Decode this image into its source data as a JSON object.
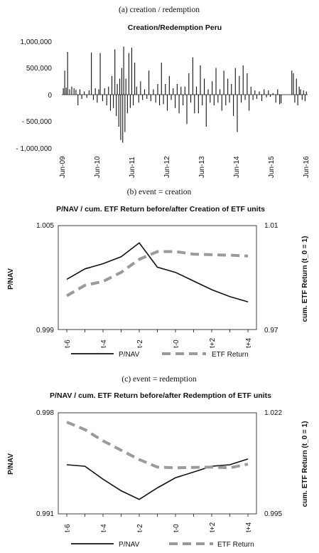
{
  "panels": {
    "a": {
      "caption": "(a) creation / redemption",
      "title": "Creation/Redemption Peru",
      "y_ticks": [
        "1,000,000",
        "500,000",
        "0",
        "- 500,000",
        "- 1,000,000"
      ],
      "x_ticks": [
        "Jun-09",
        "Jun-10",
        "Jun-11",
        "Jun-12",
        "Jun-13",
        "Jun-14",
        "Jun-15",
        "Jun-16"
      ]
    },
    "b": {
      "caption": "(b) event = creation",
      "title": "P/NAV / cum. ETF Return before/after Creation of ETF units",
      "left_axis_label": "P/NAV",
      "right_axis_label": "cum. ETF Return (t_0 = 1)",
      "left_ticks": [
        "1.005",
        "0.999"
      ],
      "right_ticks": [
        "1.01",
        "0.97"
      ],
      "x_ticks": [
        "t-6",
        "t-4",
        "t-2",
        "t-0",
        "t+2",
        "t+4"
      ],
      "legend": [
        "P/NAV",
        "ETF Return"
      ]
    },
    "c": {
      "caption": "(c) event = redemption",
      "title": "P/NAV / cum. ETF Return before/after Redemption of ETF units",
      "left_axis_label": "P/NAV",
      "right_axis_label": "cum. ETF Return (t_0 = 1)",
      "left_ticks": [
        "0.998",
        "0.991"
      ],
      "right_ticks": [
        "1.022",
        "0.995"
      ],
      "x_ticks": [
        "t-6",
        "t-4",
        "t-2",
        "t-0",
        "t+2",
        "t+4"
      ],
      "legend": [
        "P/NAV",
        "ETF Return"
      ]
    }
  },
  "chart_data": [
    {
      "type": "bar",
      "title": "Creation/Redemption Peru",
      "ylim": [
        -1000000,
        1000000
      ],
      "x_range": [
        "Jun-09",
        "Jun-16"
      ],
      "bars": [
        [
          "2009-06-05",
          120000
        ],
        [
          "2009-06-20",
          450000
        ],
        [
          "2009-07-05",
          130000
        ],
        [
          "2009-07-20",
          800000
        ],
        [
          "2009-08-10",
          100000
        ],
        [
          "2009-09-01",
          150000
        ],
        [
          "2009-09-25",
          120000
        ],
        [
          "2009-10-15",
          90000
        ],
        [
          "2009-11-05",
          -200000
        ],
        [
          "2009-11-25",
          100000
        ],
        [
          "2009-12-15",
          -80000
        ],
        [
          "2010-01-10",
          60000
        ],
        [
          "2010-02-05",
          -60000
        ],
        [
          "2010-03-01",
          80000
        ],
        [
          "2010-03-25",
          790000
        ],
        [
          "2010-04-15",
          -100000
        ],
        [
          "2010-05-05",
          120000
        ],
        [
          "2010-05-25",
          -150000
        ],
        [
          "2010-06-10",
          100000
        ],
        [
          "2010-06-25",
          780000
        ],
        [
          "2010-07-20",
          -120000
        ],
        [
          "2010-08-10",
          120000
        ],
        [
          "2010-09-01",
          -200000
        ],
        [
          "2010-09-20",
          150000
        ],
        [
          "2010-10-10",
          -300000
        ],
        [
          "2010-10-25",
          350000
        ],
        [
          "2010-11-10",
          -250000
        ],
        [
          "2010-11-25",
          850000
        ],
        [
          "2010-12-10",
          -400000
        ],
        [
          "2010-12-20",
          200000
        ],
        [
          "2011-01-05",
          -600000
        ],
        [
          "2011-01-15",
          300000
        ],
        [
          "2011-01-25",
          -850000
        ],
        [
          "2011-02-05",
          500000
        ],
        [
          "2011-02-15",
          -900000
        ],
        [
          "2011-02-25",
          900000
        ],
        [
          "2011-03-10",
          -700000
        ],
        [
          "2011-03-20",
          300000
        ],
        [
          "2011-04-05",
          -350000
        ],
        [
          "2011-04-20",
          780000
        ],
        [
          "2011-05-05",
          -250000
        ],
        [
          "2011-05-20",
          880000
        ],
        [
          "2011-06-05",
          -200000
        ],
        [
          "2011-06-20",
          600000
        ],
        [
          "2011-07-10",
          150000
        ],
        [
          "2011-08-01",
          -150000
        ],
        [
          "2011-08-20",
          250000
        ],
        [
          "2011-09-10",
          -100000
        ],
        [
          "2011-10-01",
          100000
        ],
        [
          "2011-10-25",
          -80000
        ],
        [
          "2011-11-15",
          450000
        ],
        [
          "2011-12-05",
          -120000
        ],
        [
          "2012-01-01",
          100000
        ],
        [
          "2012-01-25",
          -150000
        ],
        [
          "2012-02-15",
          200000
        ],
        [
          "2012-03-05",
          -200000
        ],
        [
          "2012-03-25",
          600000
        ],
        [
          "2012-04-15",
          -180000
        ],
        [
          "2012-05-05",
          200000
        ],
        [
          "2012-05-25",
          -300000
        ],
        [
          "2012-06-15",
          350000
        ],
        [
          "2012-07-05",
          -100000
        ],
        [
          "2012-07-25",
          120000
        ],
        [
          "2012-08-15",
          -250000
        ],
        [
          "2012-09-05",
          200000
        ],
        [
          "2012-09-25",
          -350000
        ],
        [
          "2012-10-15",
          150000
        ],
        [
          "2012-11-05",
          -200000
        ],
        [
          "2012-11-25",
          150000
        ],
        [
          "2012-12-15",
          -550000
        ],
        [
          "2013-01-05",
          400000
        ],
        [
          "2013-01-25",
          -150000
        ],
        [
          "2013-02-15",
          700000
        ],
        [
          "2013-03-05",
          -350000
        ],
        [
          "2013-03-25",
          150000
        ],
        [
          "2013-04-15",
          -350000
        ],
        [
          "2013-05-05",
          550000
        ],
        [
          "2013-05-25",
          -200000
        ],
        [
          "2013-06-15",
          300000
        ],
        [
          "2013-07-05",
          -600000
        ],
        [
          "2013-07-25",
          100000
        ],
        [
          "2013-08-15",
          -150000
        ],
        [
          "2013-09-05",
          250000
        ],
        [
          "2013-09-25",
          -200000
        ],
        [
          "2013-10-15",
          500000
        ],
        [
          "2013-11-05",
          -150000
        ],
        [
          "2013-11-25",
          100000
        ],
        [
          "2013-12-15",
          -300000
        ],
        [
          "2014-01-05",
          450000
        ],
        [
          "2014-01-25",
          -200000
        ],
        [
          "2014-02-15",
          300000
        ],
        [
          "2014-03-05",
          -150000
        ],
        [
          "2014-03-25",
          200000
        ],
        [
          "2014-04-15",
          -400000
        ],
        [
          "2014-05-05",
          500000
        ],
        [
          "2014-05-25",
          -700000
        ],
        [
          "2014-06-15",
          350000
        ],
        [
          "2014-07-05",
          -150000
        ],
        [
          "2014-07-25",
          550000
        ],
        [
          "2014-08-15",
          -100000
        ],
        [
          "2014-09-05",
          400000
        ],
        [
          "2014-09-25",
          -300000
        ],
        [
          "2014-10-15",
          150000
        ],
        [
          "2014-11-05",
          -100000
        ],
        [
          "2014-11-25",
          80000
        ],
        [
          "2014-12-15",
          -80000
        ],
        [
          "2015-01-10",
          60000
        ],
        [
          "2015-02-05",
          -120000
        ],
        [
          "2015-03-01",
          100000
        ],
        [
          "2015-03-25",
          -50000
        ],
        [
          "2015-04-15",
          80000
        ],
        [
          "2015-05-05",
          -40000
        ],
        [
          "2015-06-01",
          30000
        ],
        [
          "2015-07-01",
          -150000
        ],
        [
          "2015-07-20",
          100000
        ],
        [
          "2015-08-10",
          -180000
        ],
        [
          "2015-08-25",
          -160000
        ],
        [
          "2015-12-15",
          450000
        ],
        [
          "2016-01-01",
          400000
        ],
        [
          "2016-01-15",
          -150000
        ],
        [
          "2016-02-01",
          300000
        ],
        [
          "2016-02-15",
          -200000
        ],
        [
          "2016-03-01",
          150000
        ],
        [
          "2016-03-15",
          100000
        ],
        [
          "2016-04-01",
          -100000
        ],
        [
          "2016-04-15",
          80000
        ],
        [
          "2016-05-01",
          -120000
        ],
        [
          "2016-05-15",
          60000
        ]
      ]
    },
    {
      "type": "line",
      "title": "P/NAV / cum. ETF Return before/after Creation of ETF units",
      "x": [
        "t-6",
        "t-5",
        "t-4",
        "t-3",
        "t-2",
        "t-1",
        "t-0",
        "t+1",
        "t+2",
        "t+3",
        "t+4"
      ],
      "left_ylim": [
        0.999,
        1.005
      ],
      "right_ylim": [
        0.97,
        1.01
      ],
      "series": [
        {
          "name": "P/NAV",
          "axis": "left",
          "style": "solid",
          "color": "#111111",
          "values": [
            1.0019,
            1.0025,
            1.0028,
            1.0032,
            1.004,
            1.0026,
            1.0023,
            1.0018,
            1.0013,
            1.0009,
            1.0006
          ]
        },
        {
          "name": "ETF Return",
          "axis": "right",
          "style": "dashed",
          "color": "#9a9a9a",
          "values": [
            0.983,
            0.987,
            0.9885,
            0.992,
            0.997,
            1.0,
            1.0,
            0.999,
            0.9988,
            0.9986,
            0.9983
          ]
        }
      ]
    },
    {
      "type": "line",
      "title": "P/NAV / cum. ETF Return before/after Redemption of ETF units",
      "x": [
        "t-6",
        "t-5",
        "t-4",
        "t-3",
        "t-2",
        "t-1",
        "t-0",
        "t+1",
        "t+2",
        "t+3",
        "t+4"
      ],
      "left_ylim": [
        0.991,
        0.998
      ],
      "right_ylim": [
        0.995,
        1.022
      ],
      "series": [
        {
          "name": "P/NAV",
          "axis": "left",
          "style": "solid",
          "color": "#111111",
          "values": [
            0.9944,
            0.9943,
            0.9934,
            0.9926,
            0.992,
            0.9928,
            0.9935,
            0.9939,
            0.9943,
            0.9944,
            0.9948
          ]
        },
        {
          "name": "ETF Return",
          "axis": "right",
          "style": "dashed",
          "color": "#9a9a9a",
          "values": [
            1.0195,
            1.0175,
            1.0145,
            1.012,
            1.0095,
            1.0075,
            1.0073,
            1.0074,
            1.0075,
            1.0073,
            1.0083
          ]
        }
      ]
    }
  ]
}
